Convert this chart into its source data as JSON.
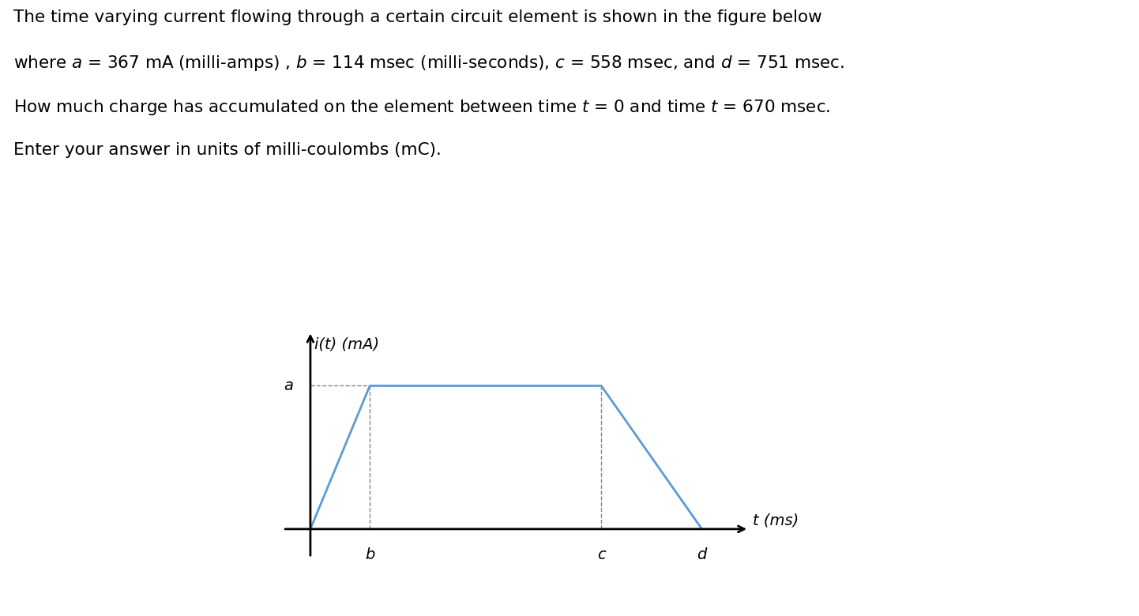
{
  "line1": "The time varying current flowing through a certain circuit element is shown in the figure below",
  "line2": "where $a$ = 367 mA (milli-amps) , $b$ = 114 msec (milli-seconds), $c$ = 558 msec, and $d$ = 751 msec.",
  "line3": "How much charge has accumulated on the element between time $t$ = 0 and time $t$ = 670 msec.",
  "line4": "Enter your answer in units of milli-coulombs (mC).",
  "a_val": 1.0,
  "b_val": 0.152,
  "c_val": 0.743,
  "d_val": 1.0,
  "waveform_color": "#5b9bd5",
  "axis_color": "#000000",
  "dashed_color": "#888888",
  "background_color": "#ffffff",
  "ylabel_text": "i(t) (mA)",
  "xlabel_text": "t (ms)",
  "label_a": "a",
  "label_b": "b",
  "label_c": "c",
  "label_d": "d",
  "text_fontsize": 15.5,
  "graph_fontsize": 14
}
